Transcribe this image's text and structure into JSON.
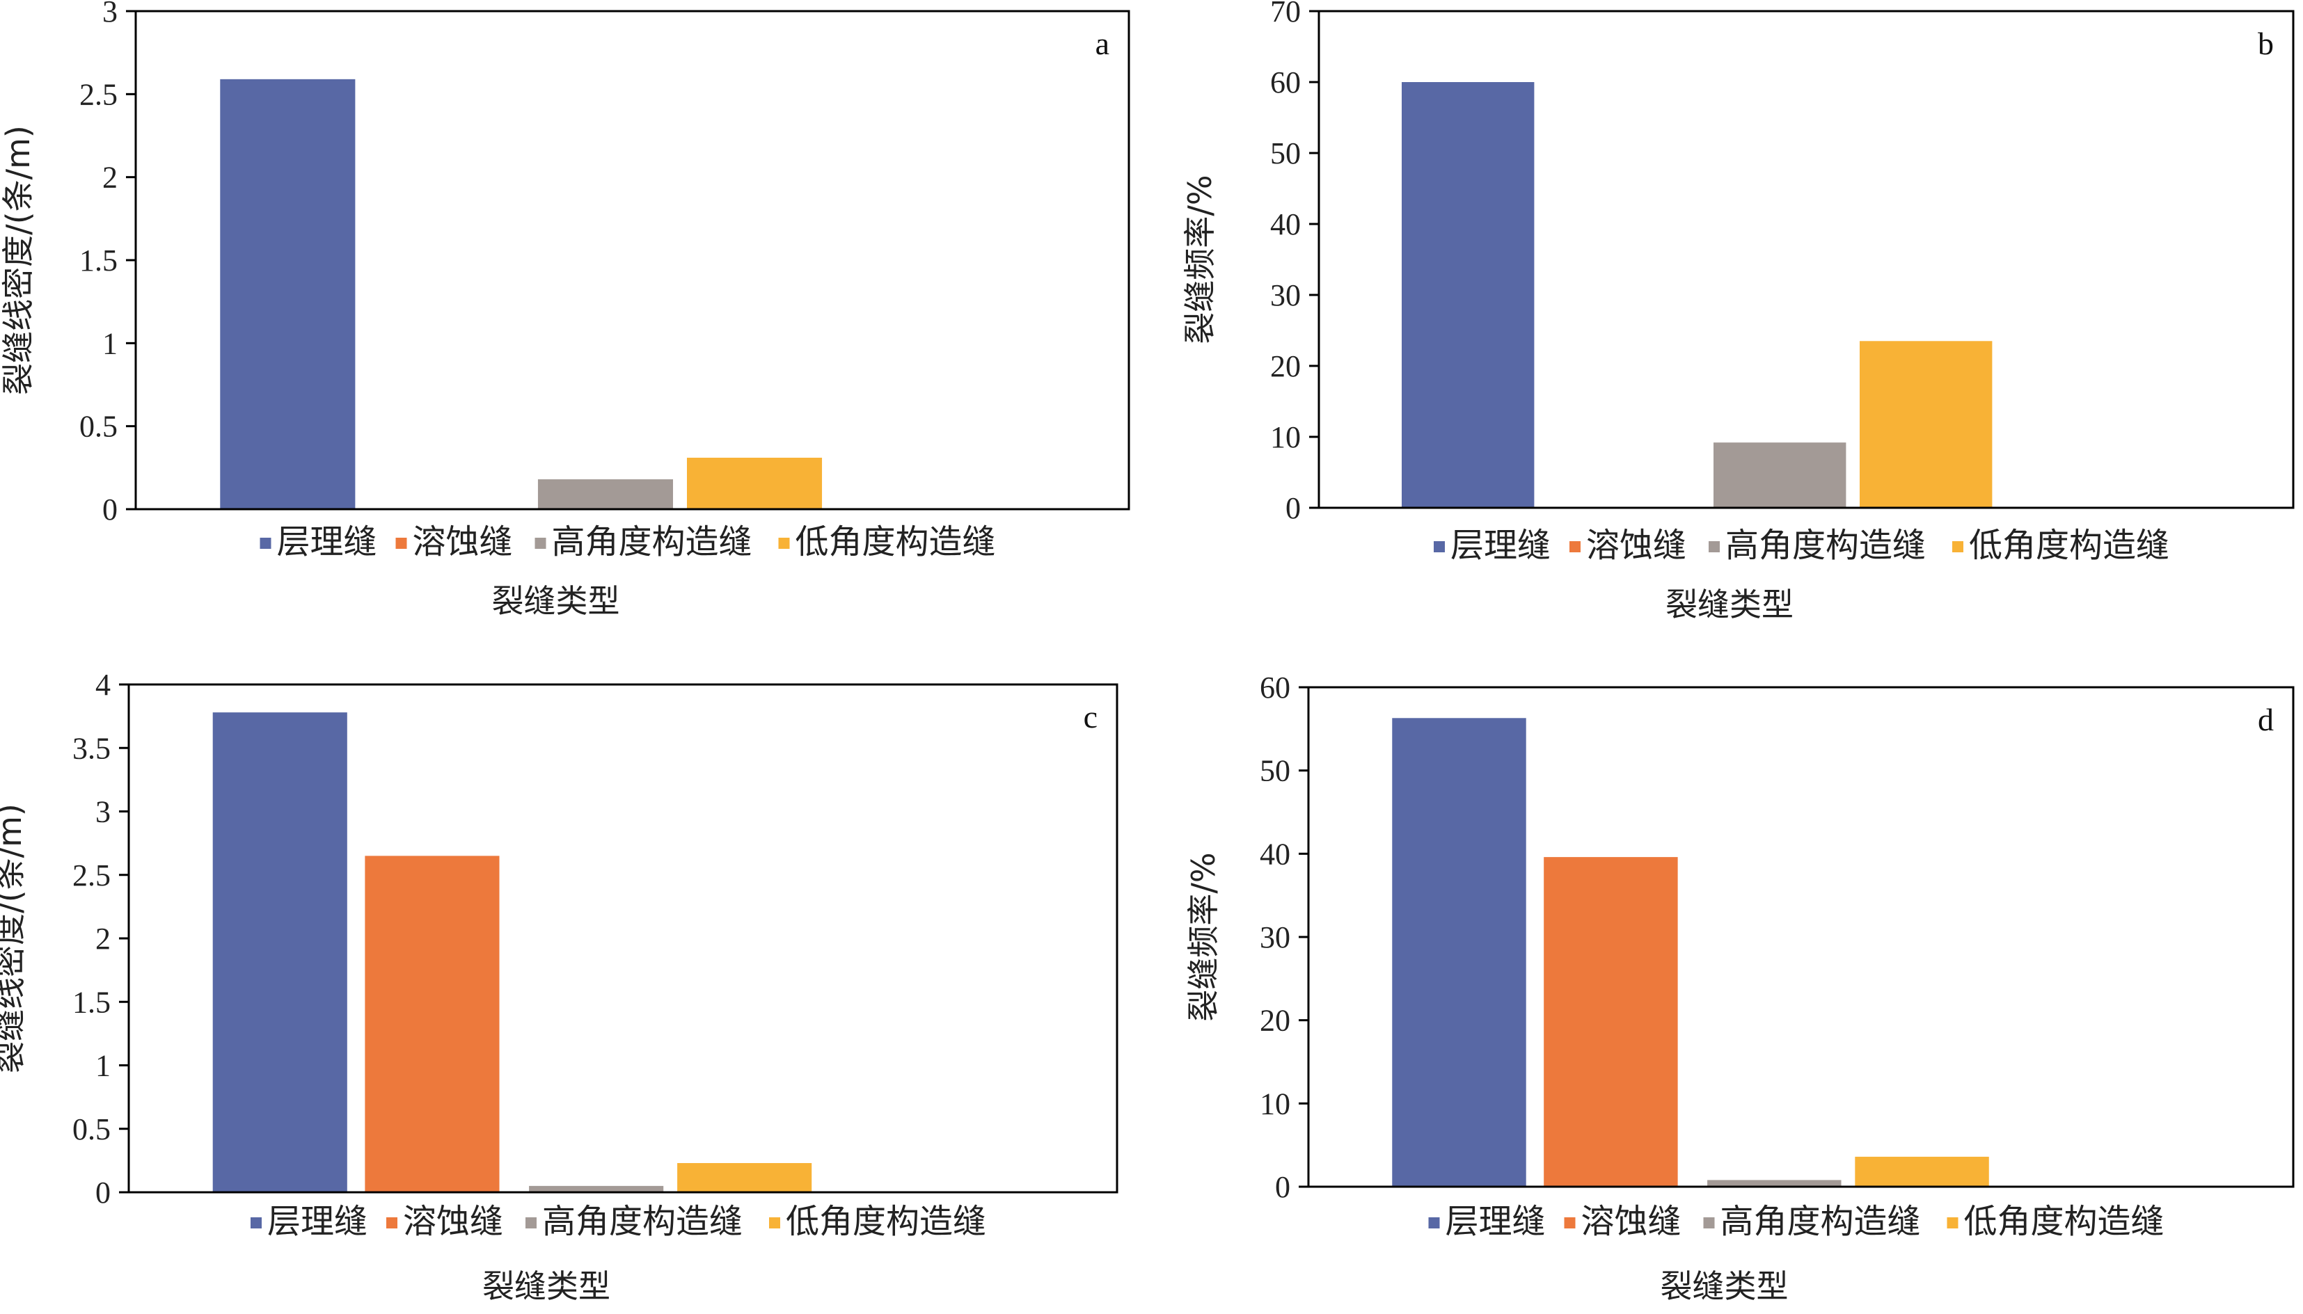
{
  "legend_labels": [
    "层理缝",
    "溶蚀缝",
    "高角度构造缝",
    "低角度构造缝"
  ],
  "series_colors": [
    "#5868a5",
    "#ed793c",
    "#a39a96",
    "#f8b236"
  ],
  "chart_data": [
    {
      "type": "bar",
      "panel_label": "a",
      "categories": [
        "层理缝",
        "溶蚀缝",
        "高角度构造缝",
        "低角度构造缝"
      ],
      "values": [
        2.59,
        0,
        0.18,
        0.31
      ],
      "xlabel": "裂缝类型",
      "ylabel": "裂缝线密度/(条/m)",
      "ylim": [
        0,
        3
      ],
      "yticks": [
        "0",
        "0.5",
        "1",
        "1.5",
        "2",
        "2.5",
        "3"
      ],
      "legend_position": "bottom",
      "grid": false
    },
    {
      "type": "bar",
      "panel_label": "b",
      "categories": [
        "层理缝",
        "溶蚀缝",
        "高角度构造缝",
        "低角度构造缝"
      ],
      "values": [
        60,
        0,
        9.2,
        23.5
      ],
      "xlabel": "裂缝类型",
      "ylabel": "裂缝频率/%",
      "ylim": [
        0,
        70
      ],
      "yticks": [
        "0",
        "10",
        "20",
        "30",
        "40",
        "50",
        "60",
        "70"
      ],
      "legend_position": "bottom",
      "grid": false
    },
    {
      "type": "bar",
      "panel_label": "c",
      "categories": [
        "层理缝",
        "溶蚀缝",
        "高角度构造缝",
        "低角度构造缝"
      ],
      "values": [
        3.78,
        2.65,
        0.05,
        0.23
      ],
      "xlabel": "裂缝类型",
      "ylabel": "裂缝线密度/(条/m)",
      "ylim": [
        0,
        4
      ],
      "yticks": [
        "0",
        "0.5",
        "1",
        "1.5",
        "2",
        "2.5",
        "3",
        "3.5",
        "4"
      ],
      "legend_position": "bottom",
      "grid": false
    },
    {
      "type": "bar",
      "panel_label": "d",
      "categories": [
        "层理缝",
        "溶蚀缝",
        "高角度构造缝",
        "低角度构造缝"
      ],
      "values": [
        56.3,
        39.6,
        0.8,
        3.6
      ],
      "xlabel": "裂缝类型",
      "ylabel": "裂缝频率/%",
      "ylim": [
        0,
        60
      ],
      "yticks": [
        "0",
        "10",
        "20",
        "30",
        "40",
        "50",
        "60"
      ],
      "legend_position": "bottom",
      "grid": false
    }
  ]
}
